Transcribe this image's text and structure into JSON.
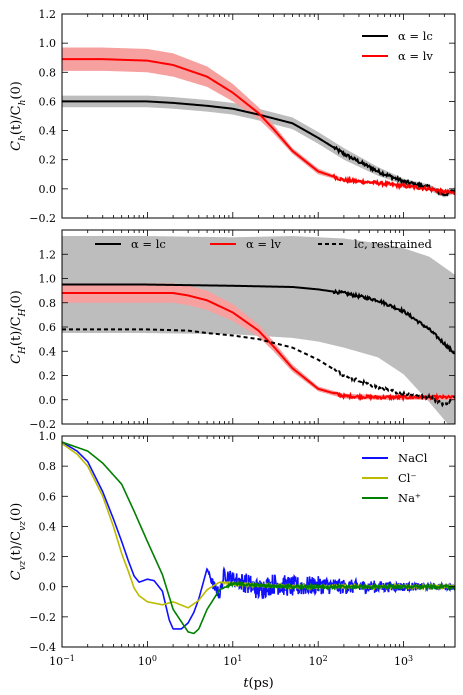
{
  "chart_data": [
    {
      "type": "line",
      "ylabel": "C_h(t)/C_h(0)",
      "xscale": "log",
      "xlim": [
        0.1,
        4000
      ],
      "ylim": [
        -0.2,
        1.2
      ],
      "yticks": [
        "−0.2",
        "0.0",
        "0.2",
        "0.4",
        "0.6",
        "0.8",
        "1.0",
        "1.2"
      ],
      "legend_position": "top-right",
      "series": [
        {
          "name": "α = lc",
          "color": "#000000",
          "band_color": "#bdbdbd",
          "x": [
            0.1,
            0.3,
            1,
            2,
            5,
            10,
            20,
            50,
            100,
            200,
            500,
            1000,
            2000,
            3000,
            4000
          ],
          "y": [
            0.6,
            0.6,
            0.6,
            0.59,
            0.57,
            0.55,
            0.51,
            0.45,
            0.35,
            0.24,
            0.12,
            0.05,
            0.01,
            -0.04,
            -0.01
          ],
          "band": [
            0.04,
            0.04,
            0.04,
            0.04,
            0.04,
            0.04,
            0.04,
            0.04,
            0.04,
            0.04,
            0.03,
            0.02,
            0.02,
            0.02,
            0.02
          ]
        },
        {
          "name": "α = lv",
          "color": "#ff0000",
          "band_color": "#f7a0a0",
          "x": [
            0.1,
            0.3,
            1,
            2,
            5,
            10,
            20,
            30,
            50,
            100,
            200,
            500,
            1000,
            2000,
            3000,
            4000
          ],
          "y": [
            0.89,
            0.89,
            0.88,
            0.85,
            0.77,
            0.66,
            0.52,
            0.41,
            0.26,
            0.12,
            0.06,
            0.04,
            0.02,
            0.0,
            -0.02,
            -0.03
          ],
          "band": [
            0.08,
            0.08,
            0.08,
            0.08,
            0.07,
            0.06,
            0.04,
            0.03,
            0.02,
            0.02,
            0.01,
            0.01,
            0.01,
            0.01,
            0.01,
            0.01
          ]
        }
      ]
    },
    {
      "type": "line",
      "ylabel": "C_H(t)/C_H(0)",
      "xscale": "log",
      "xlim": [
        0.1,
        4000
      ],
      "ylim": [
        -0.2,
        1.4
      ],
      "yticks": [
        "−0.2",
        "0.0",
        "0.2",
        "0.4",
        "0.6",
        "0.8",
        "1.0",
        "1.2"
      ],
      "legend_position": "top",
      "series": [
        {
          "name": "α = lc",
          "color": "#000000",
          "band_color": "#bdbdbd",
          "x": [
            0.1,
            1,
            10,
            50,
            100,
            200,
            500,
            1000,
            2000,
            4000
          ],
          "y": [
            0.95,
            0.95,
            0.94,
            0.93,
            0.91,
            0.88,
            0.82,
            0.73,
            0.58,
            0.38
          ],
          "band": [
            0.4,
            0.4,
            0.4,
            0.42,
            0.43,
            0.45,
            0.47,
            0.52,
            0.6,
            0.65
          ]
        },
        {
          "name": "α = lv",
          "color": "#ff0000",
          "band_color": "#f7a0a0",
          "x": [
            0.1,
            0.3,
            1,
            2,
            3,
            5,
            10,
            20,
            30,
            50,
            100,
            200,
            500,
            1000,
            4000
          ],
          "y": [
            0.88,
            0.88,
            0.88,
            0.88,
            0.86,
            0.82,
            0.72,
            0.57,
            0.44,
            0.26,
            0.09,
            0.03,
            0.02,
            0.02,
            0.02
          ],
          "band": [
            0.08,
            0.08,
            0.08,
            0.08,
            0.08,
            0.08,
            0.07,
            0.05,
            0.04,
            0.03,
            0.02,
            0.02,
            0.02,
            0.02,
            0.02
          ]
        },
        {
          "name": "lc, restrained",
          "color": "#000000",
          "dashed": true,
          "x": [
            0.1,
            1,
            3,
            5,
            10,
            20,
            50,
            100,
            200,
            500,
            1000,
            2000,
            3000,
            4000
          ],
          "y": [
            0.58,
            0.58,
            0.57,
            0.55,
            0.53,
            0.5,
            0.43,
            0.33,
            0.2,
            0.1,
            0.05,
            0.02,
            -0.04,
            0.02
          ]
        }
      ]
    },
    {
      "type": "line",
      "ylabel": "C_vz(t)/C_vz(0)",
      "xlabel": "t(ps)",
      "xscale": "log",
      "xlim": [
        0.1,
        4000
      ],
      "ylim": [
        -0.4,
        1.0
      ],
      "yticks": [
        "−0.4",
        "−0.2",
        "0.0",
        "0.2",
        "0.4",
        "0.6",
        "0.8",
        "1.0"
      ],
      "xticks": [
        0.1,
        1,
        10,
        100,
        1000
      ],
      "legend_position": "top-right",
      "series": [
        {
          "name": "NaCl",
          "color": "#1010ff",
          "x": [
            0.1,
            0.15,
            0.2,
            0.3,
            0.4,
            0.5,
            0.6,
            0.7,
            0.8,
            1.0,
            1.2,
            1.5,
            1.8,
            2.0,
            2.5,
            3.0,
            3.5,
            4.0,
            5.0,
            6.0,
            7.0,
            8.0,
            10,
            15,
            20,
            30,
            50,
            100,
            200,
            500,
            1000,
            2000,
            4000
          ],
          "y": [
            0.96,
            0.9,
            0.83,
            0.63,
            0.45,
            0.3,
            0.17,
            0.07,
            0.03,
            0.05,
            0.04,
            -0.03,
            -0.22,
            -0.28,
            -0.28,
            -0.24,
            -0.17,
            -0.08,
            0.12,
            0.0,
            -0.05,
            0.09,
            0.05,
            0.02,
            -0.02,
            0.02,
            0.0,
            0.01,
            0.0,
            0.0,
            0.0,
            0.0,
            0.0
          ],
          "noise": [
            0,
            0,
            0,
            0,
            0,
            0,
            0,
            0,
            0,
            0,
            0,
            0,
            0,
            0,
            0,
            0,
            0,
            0,
            0,
            0.04,
            0.04,
            0.05,
            0.05,
            0.07,
            0.07,
            0.07,
            0.07,
            0.06,
            0.05,
            0.04,
            0.03,
            0.02,
            0.02
          ]
        },
        {
          "name": "Cl⁻",
          "color": "#bbbb00",
          "x": [
            0.1,
            0.15,
            0.2,
            0.3,
            0.4,
            0.5,
            0.6,
            0.7,
            0.8,
            1.0,
            1.5,
            2.0,
            3.0,
            4.0,
            5.0,
            7.0,
            10,
            20,
            50,
            100,
            1000,
            4000
          ],
          "y": [
            0.95,
            0.88,
            0.8,
            0.6,
            0.4,
            0.22,
            0.1,
            -0.01,
            -0.06,
            -0.1,
            -0.12,
            -0.1,
            -0.14,
            -0.09,
            -0.02,
            0.03,
            0.02,
            0.01,
            0.0,
            0.0,
            0.0,
            0.0
          ],
          "noise": [
            0,
            0,
            0,
            0,
            0,
            0,
            0,
            0,
            0,
            0,
            0,
            0,
            0,
            0,
            0,
            0,
            0.01,
            0.01,
            0.01,
            0.01,
            0.01,
            0.01
          ]
        },
        {
          "name": "Na⁺",
          "color": "#008000",
          "x": [
            0.1,
            0.2,
            0.3,
            0.5,
            0.7,
            1.0,
            1.5,
            2.0,
            3.0,
            3.5,
            4.0,
            5.0,
            7.0,
            10,
            20,
            50,
            100,
            1000,
            4000
          ],
          "y": [
            0.96,
            0.9,
            0.82,
            0.68,
            0.5,
            0.3,
            0.08,
            -0.15,
            -0.3,
            -0.31,
            -0.28,
            -0.15,
            -0.02,
            0.02,
            0.01,
            0.0,
            0.0,
            0.0,
            0.0
          ],
          "noise": [
            0,
            0,
            0,
            0,
            0,
            0,
            0,
            0,
            0,
            0,
            0,
            0,
            0,
            0.01,
            0.01,
            0.01,
            0.01,
            0.01,
            0.01
          ]
        }
      ]
    }
  ]
}
